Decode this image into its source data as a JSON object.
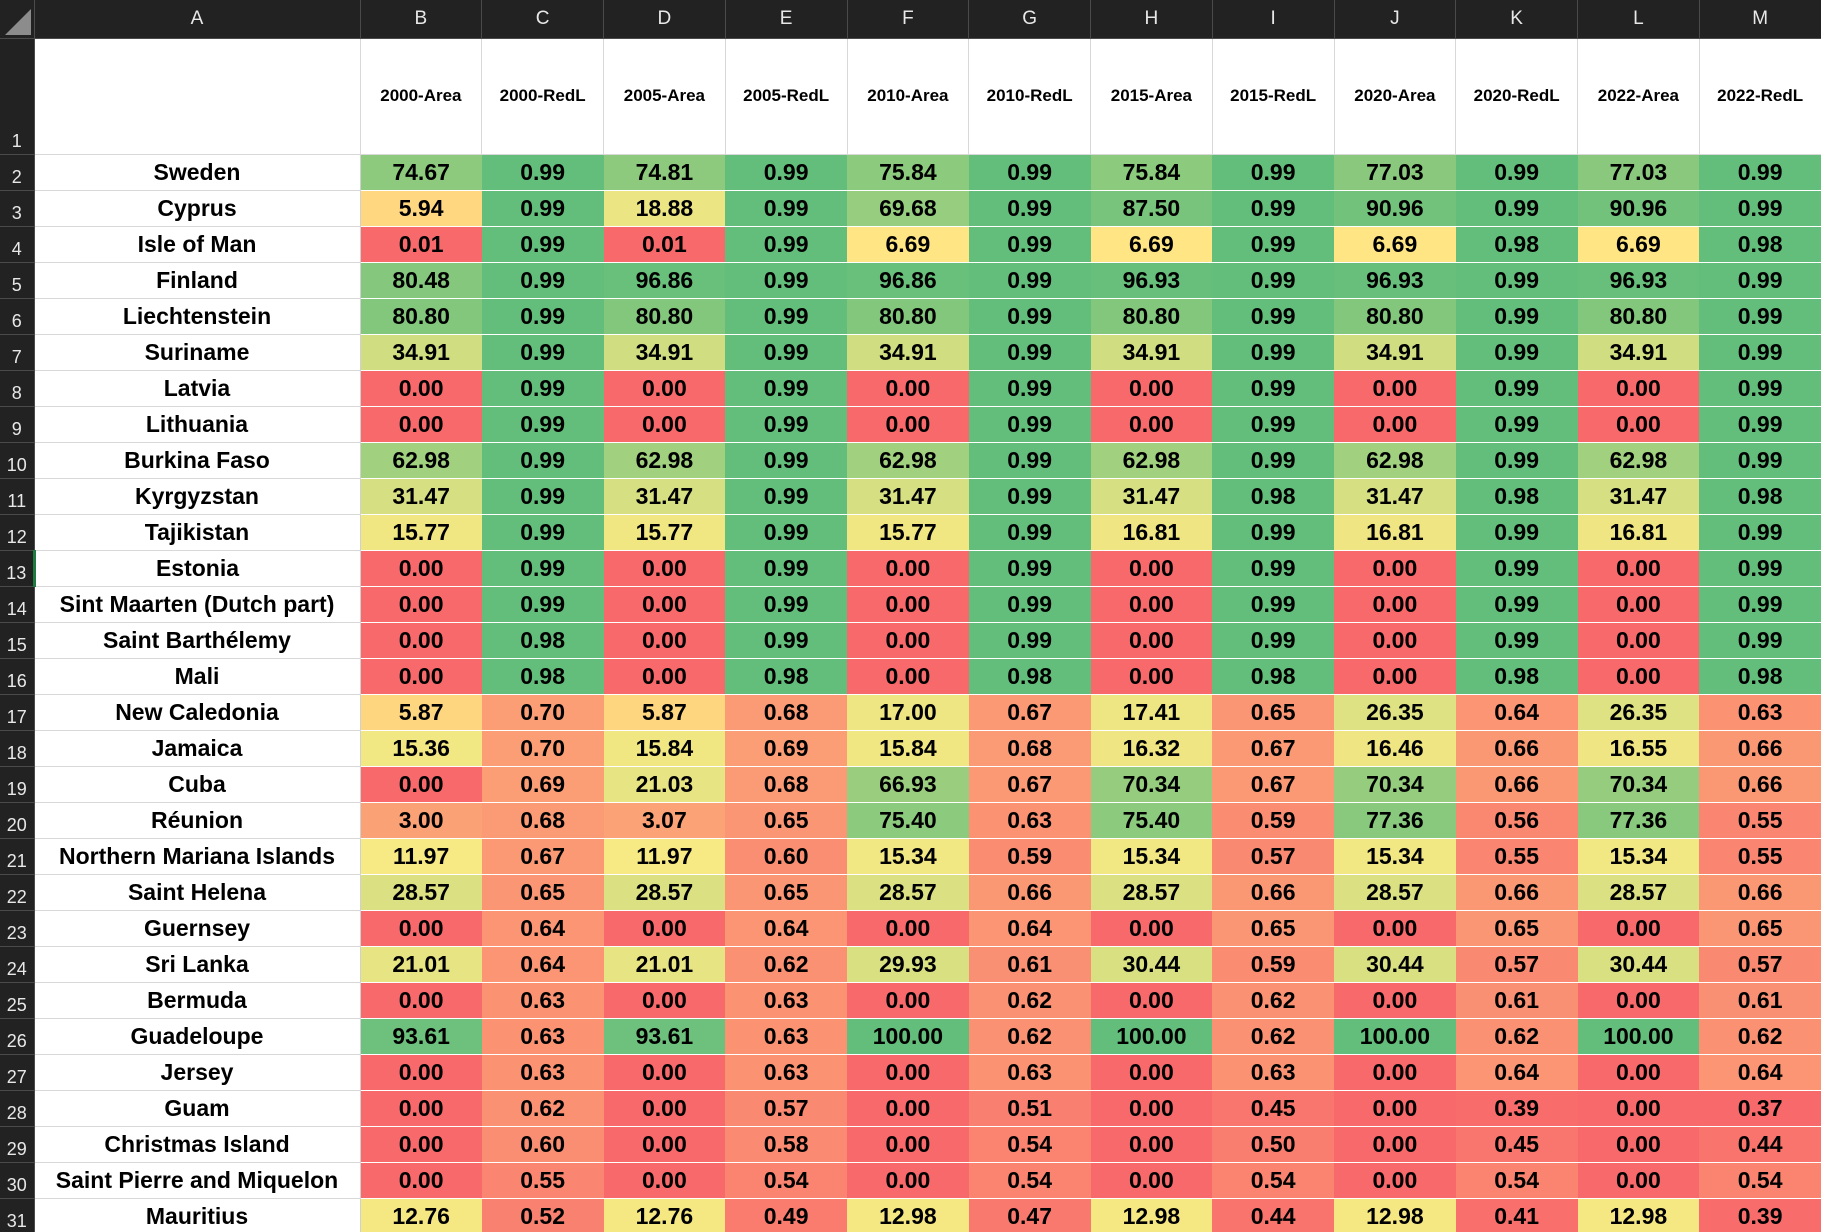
{
  "columns": [
    "A",
    "B",
    "C",
    "D",
    "E",
    "F",
    "G",
    "H",
    "I",
    "J",
    "K",
    "L",
    "M"
  ],
  "header_row": {
    "row_number": "1",
    "cells": [
      "",
      "2000-Area",
      "2000-RedL",
      "2005-Area",
      "2005-RedL",
      "2010-Area",
      "2010-RedL",
      "2015-Area",
      "2015-RedL",
      "2020-Area",
      "2020-RedL",
      "2022-Area",
      "2022-RedL"
    ]
  },
  "selected_row": "13",
  "rows": [
    {
      "row_number": "2",
      "country": "Sweden",
      "values": [
        "74.67",
        "0.99",
        "74.81",
        "0.99",
        "75.84",
        "0.99",
        "75.84",
        "0.99",
        "77.03",
        "0.99",
        "77.03",
        "0.99"
      ]
    },
    {
      "row_number": "3",
      "country": "Cyprus",
      "values": [
        "5.94",
        "0.99",
        "18.88",
        "0.99",
        "69.68",
        "0.99",
        "87.50",
        "0.99",
        "90.96",
        "0.99",
        "90.96",
        "0.99"
      ]
    },
    {
      "row_number": "4",
      "country": "Isle of Man",
      "values": [
        "0.01",
        "0.99",
        "0.01",
        "0.99",
        "6.69",
        "0.99",
        "6.69",
        "0.99",
        "6.69",
        "0.98",
        "6.69",
        "0.98"
      ]
    },
    {
      "row_number": "5",
      "country": "Finland",
      "values": [
        "80.48",
        "0.99",
        "96.86",
        "0.99",
        "96.86",
        "0.99",
        "96.93",
        "0.99",
        "96.93",
        "0.99",
        "96.93",
        "0.99"
      ]
    },
    {
      "row_number": "6",
      "country": "Liechtenstein",
      "values": [
        "80.80",
        "0.99",
        "80.80",
        "0.99",
        "80.80",
        "0.99",
        "80.80",
        "0.99",
        "80.80",
        "0.99",
        "80.80",
        "0.99"
      ]
    },
    {
      "row_number": "7",
      "country": "Suriname",
      "values": [
        "34.91",
        "0.99",
        "34.91",
        "0.99",
        "34.91",
        "0.99",
        "34.91",
        "0.99",
        "34.91",
        "0.99",
        "34.91",
        "0.99"
      ]
    },
    {
      "row_number": "8",
      "country": "Latvia",
      "values": [
        "0.00",
        "0.99",
        "0.00",
        "0.99",
        "0.00",
        "0.99",
        "0.00",
        "0.99",
        "0.00",
        "0.99",
        "0.00",
        "0.99"
      ]
    },
    {
      "row_number": "9",
      "country": "Lithuania",
      "values": [
        "0.00",
        "0.99",
        "0.00",
        "0.99",
        "0.00",
        "0.99",
        "0.00",
        "0.99",
        "0.00",
        "0.99",
        "0.00",
        "0.99"
      ]
    },
    {
      "row_number": "10",
      "country": "Burkina Faso",
      "values": [
        "62.98",
        "0.99",
        "62.98",
        "0.99",
        "62.98",
        "0.99",
        "62.98",
        "0.99",
        "62.98",
        "0.99",
        "62.98",
        "0.99"
      ]
    },
    {
      "row_number": "11",
      "country": "Kyrgyzstan",
      "values": [
        "31.47",
        "0.99",
        "31.47",
        "0.99",
        "31.47",
        "0.99",
        "31.47",
        "0.98",
        "31.47",
        "0.98",
        "31.47",
        "0.98"
      ]
    },
    {
      "row_number": "12",
      "country": "Tajikistan",
      "values": [
        "15.77",
        "0.99",
        "15.77",
        "0.99",
        "15.77",
        "0.99",
        "16.81",
        "0.99",
        "16.81",
        "0.99",
        "16.81",
        "0.99"
      ]
    },
    {
      "row_number": "13",
      "country": "Estonia",
      "values": [
        "0.00",
        "0.99",
        "0.00",
        "0.99",
        "0.00",
        "0.99",
        "0.00",
        "0.99",
        "0.00",
        "0.99",
        "0.00",
        "0.99"
      ]
    },
    {
      "row_number": "14",
      "country": "Sint Maarten (Dutch part)",
      "values": [
        "0.00",
        "0.99",
        "0.00",
        "0.99",
        "0.00",
        "0.99",
        "0.00",
        "0.99",
        "0.00",
        "0.99",
        "0.00",
        "0.99"
      ]
    },
    {
      "row_number": "15",
      "country": "Saint Barthélemy",
      "values": [
        "0.00",
        "0.98",
        "0.00",
        "0.99",
        "0.00",
        "0.99",
        "0.00",
        "0.99",
        "0.00",
        "0.99",
        "0.00",
        "0.99"
      ]
    },
    {
      "row_number": "16",
      "country": "Mali",
      "values": [
        "0.00",
        "0.98",
        "0.00",
        "0.98",
        "0.00",
        "0.98",
        "0.00",
        "0.98",
        "0.00",
        "0.98",
        "0.00",
        "0.98"
      ]
    },
    {
      "row_number": "17",
      "country": "New Caledonia",
      "values": [
        "5.87",
        "0.70",
        "5.87",
        "0.68",
        "17.00",
        "0.67",
        "17.41",
        "0.65",
        "26.35",
        "0.64",
        "26.35",
        "0.63"
      ]
    },
    {
      "row_number": "18",
      "country": "Jamaica",
      "values": [
        "15.36",
        "0.70",
        "15.84",
        "0.69",
        "15.84",
        "0.68",
        "16.32",
        "0.67",
        "16.46",
        "0.66",
        "16.55",
        "0.66"
      ]
    },
    {
      "row_number": "19",
      "country": "Cuba",
      "values": [
        "0.00",
        "0.69",
        "21.03",
        "0.68",
        "66.93",
        "0.67",
        "70.34",
        "0.67",
        "70.34",
        "0.66",
        "70.34",
        "0.66"
      ]
    },
    {
      "row_number": "20",
      "country": "Réunion",
      "values": [
        "3.00",
        "0.68",
        "3.07",
        "0.65",
        "75.40",
        "0.63",
        "75.40",
        "0.59",
        "77.36",
        "0.56",
        "77.36",
        "0.55"
      ]
    },
    {
      "row_number": "21",
      "country": "Northern Mariana Islands",
      "values": [
        "11.97",
        "0.67",
        "11.97",
        "0.60",
        "15.34",
        "0.59",
        "15.34",
        "0.57",
        "15.34",
        "0.55",
        "15.34",
        "0.55"
      ]
    },
    {
      "row_number": "22",
      "country": "Saint Helena",
      "values": [
        "28.57",
        "0.65",
        "28.57",
        "0.65",
        "28.57",
        "0.66",
        "28.57",
        "0.66",
        "28.57",
        "0.66",
        "28.57",
        "0.66"
      ]
    },
    {
      "row_number": "23",
      "country": "Guernsey",
      "values": [
        "0.00",
        "0.64",
        "0.00",
        "0.64",
        "0.00",
        "0.64",
        "0.00",
        "0.65",
        "0.00",
        "0.65",
        "0.00",
        "0.65"
      ]
    },
    {
      "row_number": "24",
      "country": "Sri Lanka",
      "values": [
        "21.01",
        "0.64",
        "21.01",
        "0.62",
        "29.93",
        "0.61",
        "30.44",
        "0.59",
        "30.44",
        "0.57",
        "30.44",
        "0.57"
      ]
    },
    {
      "row_number": "25",
      "country": "Bermuda",
      "values": [
        "0.00",
        "0.63",
        "0.00",
        "0.63",
        "0.00",
        "0.62",
        "0.00",
        "0.62",
        "0.00",
        "0.61",
        "0.00",
        "0.61"
      ]
    },
    {
      "row_number": "26",
      "country": "Guadeloupe",
      "values": [
        "93.61",
        "0.63",
        "93.61",
        "0.63",
        "100.00",
        "0.62",
        "100.00",
        "0.62",
        "100.00",
        "0.62",
        "100.00",
        "0.62"
      ]
    },
    {
      "row_number": "27",
      "country": "Jersey",
      "values": [
        "0.00",
        "0.63",
        "0.00",
        "0.63",
        "0.00",
        "0.63",
        "0.00",
        "0.63",
        "0.00",
        "0.64",
        "0.00",
        "0.64"
      ]
    },
    {
      "row_number": "28",
      "country": "Guam",
      "values": [
        "0.00",
        "0.62",
        "0.00",
        "0.57",
        "0.00",
        "0.51",
        "0.00",
        "0.45",
        "0.00",
        "0.39",
        "0.00",
        "0.37"
      ]
    },
    {
      "row_number": "29",
      "country": "Christmas Island",
      "values": [
        "0.00",
        "0.60",
        "0.00",
        "0.58",
        "0.00",
        "0.54",
        "0.00",
        "0.50",
        "0.00",
        "0.45",
        "0.00",
        "0.44"
      ]
    },
    {
      "row_number": "30",
      "country": "Saint Pierre and Miquelon",
      "values": [
        "0.00",
        "0.55",
        "0.00",
        "0.54",
        "0.00",
        "0.54",
        "0.00",
        "0.54",
        "0.00",
        "0.54",
        "0.00",
        "0.54"
      ]
    },
    {
      "row_number": "31",
      "country": "Mauritius",
      "values": [
        "12.76",
        "0.52",
        "12.76",
        "0.49",
        "12.98",
        "0.47",
        "12.98",
        "0.44",
        "12.98",
        "0.41",
        "12.98",
        "0.39"
      ]
    }
  ],
  "color_scale": {
    "low": "#f8696b",
    "mid": "#ffeb84",
    "high": "#63be7b",
    "area_mid_value": 7,
    "area_max_value": 100,
    "redl_min_value": 0.37,
    "redl_max_value": 0.99
  }
}
